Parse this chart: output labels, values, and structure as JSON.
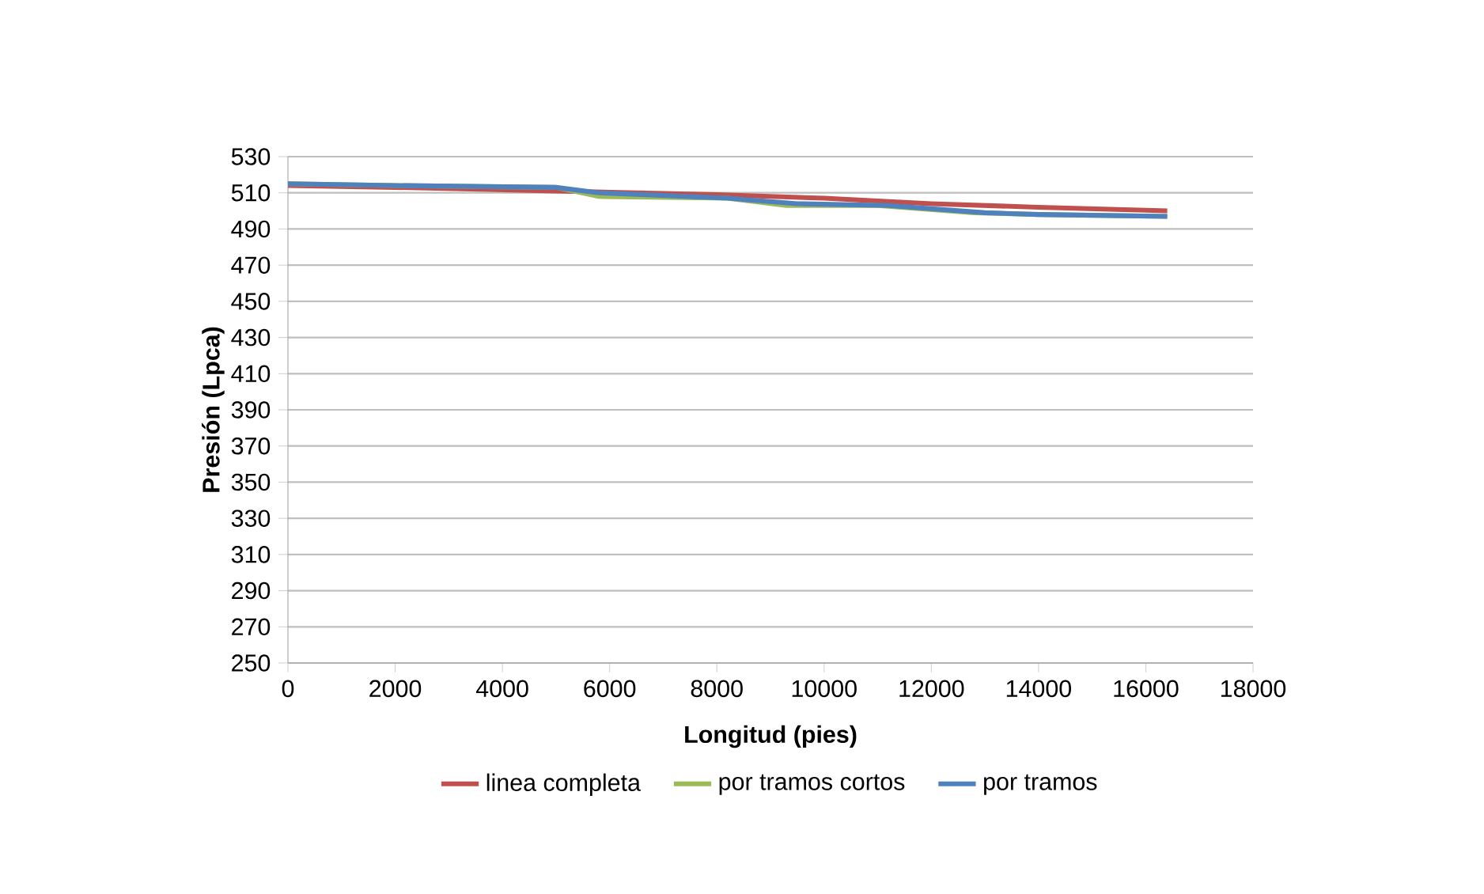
{
  "chart_data": {
    "type": "line",
    "xlabel": "Longitud (pies)",
    "ylabel": "Presión (Lpca)",
    "xlim": [
      0,
      18000
    ],
    "xticks": [
      0,
      2000,
      4000,
      6000,
      8000,
      10000,
      12000,
      14000,
      16000,
      18000
    ],
    "ylim": [
      250,
      530
    ],
    "yticks": [
      250,
      270,
      290,
      310,
      330,
      350,
      370,
      390,
      410,
      430,
      450,
      470,
      490,
      510,
      530
    ],
    "grid": "y",
    "legend": "bottom",
    "marker": "none",
    "line_style": "solid",
    "series": [
      {
        "name": "linea completa",
        "color": "#c0504d",
        "x": [
          0,
          2000,
          5000,
          8000,
          10000,
          12000,
          14000,
          16400
        ],
        "values": [
          514,
          513,
          511,
          509,
          507,
          504,
          502,
          500
        ]
      },
      {
        "name": "por tramos cortos",
        "color": "#9bbb59",
        "x": [
          0,
          2000,
          5000,
          5800,
          8200,
          9300,
          11000,
          12800,
          14000,
          16400
        ],
        "values": [
          515,
          514,
          513,
          508,
          507,
          503,
          503,
          499,
          498,
          497
        ]
      },
      {
        "name": "por tramos",
        "color": "#4f81bd",
        "x": [
          0,
          2000,
          5000,
          5800,
          8200,
          9500,
          11200,
          13000,
          14000,
          16400
        ],
        "values": [
          515,
          514,
          513,
          510,
          507,
          504,
          503,
          499,
          498,
          497
        ]
      }
    ]
  }
}
